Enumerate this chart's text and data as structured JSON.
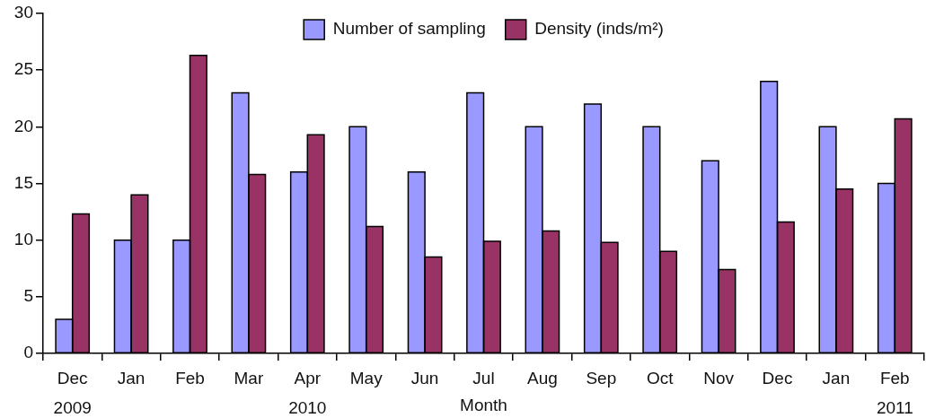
{
  "chart_data": {
    "type": "bar",
    "categories": [
      "Dec\n2009",
      "Jan",
      "Feb",
      "Mar",
      "Apr\n2010",
      "May",
      "Jun",
      "Jul",
      "Aug",
      "Sep",
      "Oct",
      "Nov",
      "Dec",
      "Jan",
      "Feb\n2011"
    ],
    "xlabel": "Month",
    "series": [
      {
        "name": "Number of sampling",
        "color": "#9999ff",
        "values": [
          3,
          10,
          10,
          23,
          16,
          20,
          16,
          23,
          20,
          22,
          20,
          17,
          24,
          20,
          15
        ]
      },
      {
        "name": "Density (inds/m²)",
        "color": "#993366",
        "values": [
          12.3,
          14,
          26.3,
          15.8,
          19.3,
          11.2,
          8.5,
          9.9,
          10.8,
          9.8,
          9.0,
          7.4,
          11.6,
          14.5,
          20.7
        ]
      }
    ],
    "ylim": [
      0,
      30
    ],
    "yticks": [
      0,
      5,
      10,
      15,
      20,
      25,
      30
    ],
    "legend": "top"
  }
}
